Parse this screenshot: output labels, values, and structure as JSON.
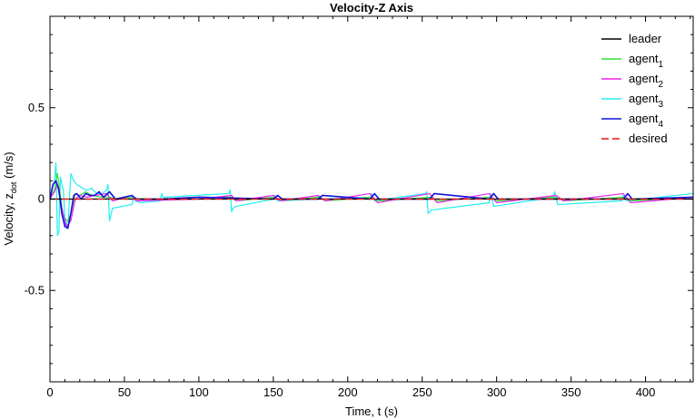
{
  "chart_data": {
    "type": "line",
    "title": "Velocity-Z Axis",
    "xlabel": "Time, t (s)",
    "ylabel_main": "Velocity, z",
    "ylabel_sub": "dot",
    "ylabel_unit": " (m/s)",
    "xlim": [
      0,
      432
    ],
    "ylim": [
      -1,
      1
    ],
    "xticks": [
      0,
      50,
      100,
      150,
      200,
      250,
      300,
      350,
      400
    ],
    "xtick_labels": [
      "0",
      "50",
      "100",
      "150",
      "200",
      "250",
      "300",
      "350",
      "400"
    ],
    "yticks": [
      -0.5,
      0,
      0.5
    ],
    "ytick_labels": [
      "-0.5",
      "0",
      "0.5"
    ],
    "grid": false,
    "legend_position": "top-right",
    "series": [
      {
        "name": "leader",
        "sub": "",
        "color": "#000000",
        "dashed": false,
        "x": [
          0,
          432
        ],
        "y": [
          0,
          0
        ]
      },
      {
        "name": "agent",
        "sub": "1",
        "color": "#33dd33",
        "dashed": false,
        "x": [
          0,
          3,
          5,
          7,
          9,
          12,
          14,
          17,
          20,
          24,
          28,
          35,
          40,
          45,
          55,
          60,
          75,
          100,
          122,
          125,
          150,
          155,
          180,
          185,
          215,
          220,
          255,
          260,
          295,
          300,
          340,
          345,
          385,
          390,
          432
        ],
        "y": [
          0.0,
          0.05,
          0.14,
          0.02,
          -0.1,
          -0.12,
          -0.08,
          0.03,
          0.02,
          0.04,
          0.02,
          0.01,
          0.01,
          0.0,
          0.01,
          0.0,
          0.0,
          0.01,
          0.01,
          -0.01,
          0.01,
          -0.01,
          0.01,
          -0.01,
          0.01,
          -0.01,
          0.01,
          -0.01,
          0.01,
          -0.01,
          0.01,
          -0.01,
          0.01,
          -0.01,
          0.01
        ]
      },
      {
        "name": "agent",
        "sub": "2",
        "color": "#ee22ee",
        "dashed": false,
        "x": [
          0,
          3,
          5,
          8,
          11,
          14,
          17,
          20,
          25,
          30,
          38,
          42,
          55,
          58,
          100,
          122,
          125,
          150,
          155,
          180,
          185,
          215,
          220,
          255,
          260,
          295,
          300,
          340,
          345,
          385,
          390,
          432
        ],
        "y": [
          0.0,
          0.04,
          0.08,
          -0.05,
          -0.15,
          -0.12,
          0.0,
          0.02,
          0.01,
          0.02,
          0.03,
          -0.01,
          0.02,
          -0.01,
          0.0,
          0.02,
          -0.01,
          0.02,
          -0.01,
          0.02,
          -0.01,
          0.03,
          -0.02,
          0.03,
          -0.02,
          0.03,
          -0.02,
          0.02,
          -0.01,
          0.03,
          -0.02,
          0.01
        ]
      },
      {
        "name": "agent",
        "sub": "3",
        "color": "#22eeee",
        "dashed": false,
        "x": [
          0,
          3,
          4,
          5,
          6,
          7,
          8,
          9,
          10,
          12,
          14,
          16,
          18,
          20,
          22,
          24,
          26,
          28,
          30,
          32,
          35,
          38,
          39,
          40,
          42,
          55,
          56,
          60,
          74,
          75,
          76,
          120,
          121,
          122,
          123,
          125,
          150,
          151,
          153,
          178,
          180,
          182,
          215,
          216,
          218,
          252,
          253,
          254,
          256,
          295,
          296,
          298,
          338,
          339,
          341,
          384,
          385,
          387,
          432
        ],
        "y": [
          0.0,
          0.1,
          0.2,
          -0.2,
          -0.18,
          0.12,
          0.08,
          0.05,
          -0.1,
          -0.16,
          0.14,
          0.1,
          0.08,
          0.07,
          0.06,
          0.05,
          0.05,
          0.06,
          0.04,
          0.03,
          0.03,
          0.05,
          0.08,
          -0.12,
          -0.05,
          -0.03,
          0.0,
          -0.02,
          -0.01,
          0.03,
          0.01,
          0.03,
          0.05,
          -0.07,
          -0.05,
          -0.04,
          0.0,
          0.02,
          -0.01,
          0.0,
          0.02,
          0.0,
          0.01,
          0.03,
          -0.01,
          0.03,
          0.04,
          -0.08,
          -0.06,
          -0.02,
          0.03,
          -0.04,
          0.01,
          0.04,
          -0.03,
          -0.01,
          0.02,
          -0.01,
          0.03
        ]
      },
      {
        "name": "agent",
        "sub": "4",
        "color": "#1111dd",
        "dashed": false,
        "x": [
          0,
          2,
          4,
          6,
          8,
          10,
          12,
          14,
          16,
          18,
          21,
          24,
          27,
          30,
          33,
          36,
          40,
          44,
          55,
          58,
          75,
          100,
          150,
          153,
          156,
          180,
          183,
          215,
          218,
          221,
          255,
          258,
          295,
          298,
          301,
          385,
          388,
          391,
          432
        ],
        "y": [
          0.0,
          0.08,
          0.1,
          0.05,
          -0.08,
          -0.15,
          -0.16,
          -0.08,
          0.02,
          0.03,
          0.0,
          0.03,
          0.02,
          0.02,
          0.04,
          0.01,
          0.04,
          0.0,
          0.02,
          0.0,
          0.0,
          0.01,
          0.0,
          0.02,
          0.0,
          0.0,
          0.02,
          0.0,
          0.03,
          0.0,
          0.0,
          0.03,
          0.0,
          0.03,
          0.0,
          0.0,
          0.03,
          0.0,
          0.01
        ]
      },
      {
        "name": "desired",
        "sub": "",
        "color": "#ee1111",
        "dashed": true,
        "x": [
          0,
          432
        ],
        "y": [
          0,
          0
        ]
      }
    ]
  }
}
